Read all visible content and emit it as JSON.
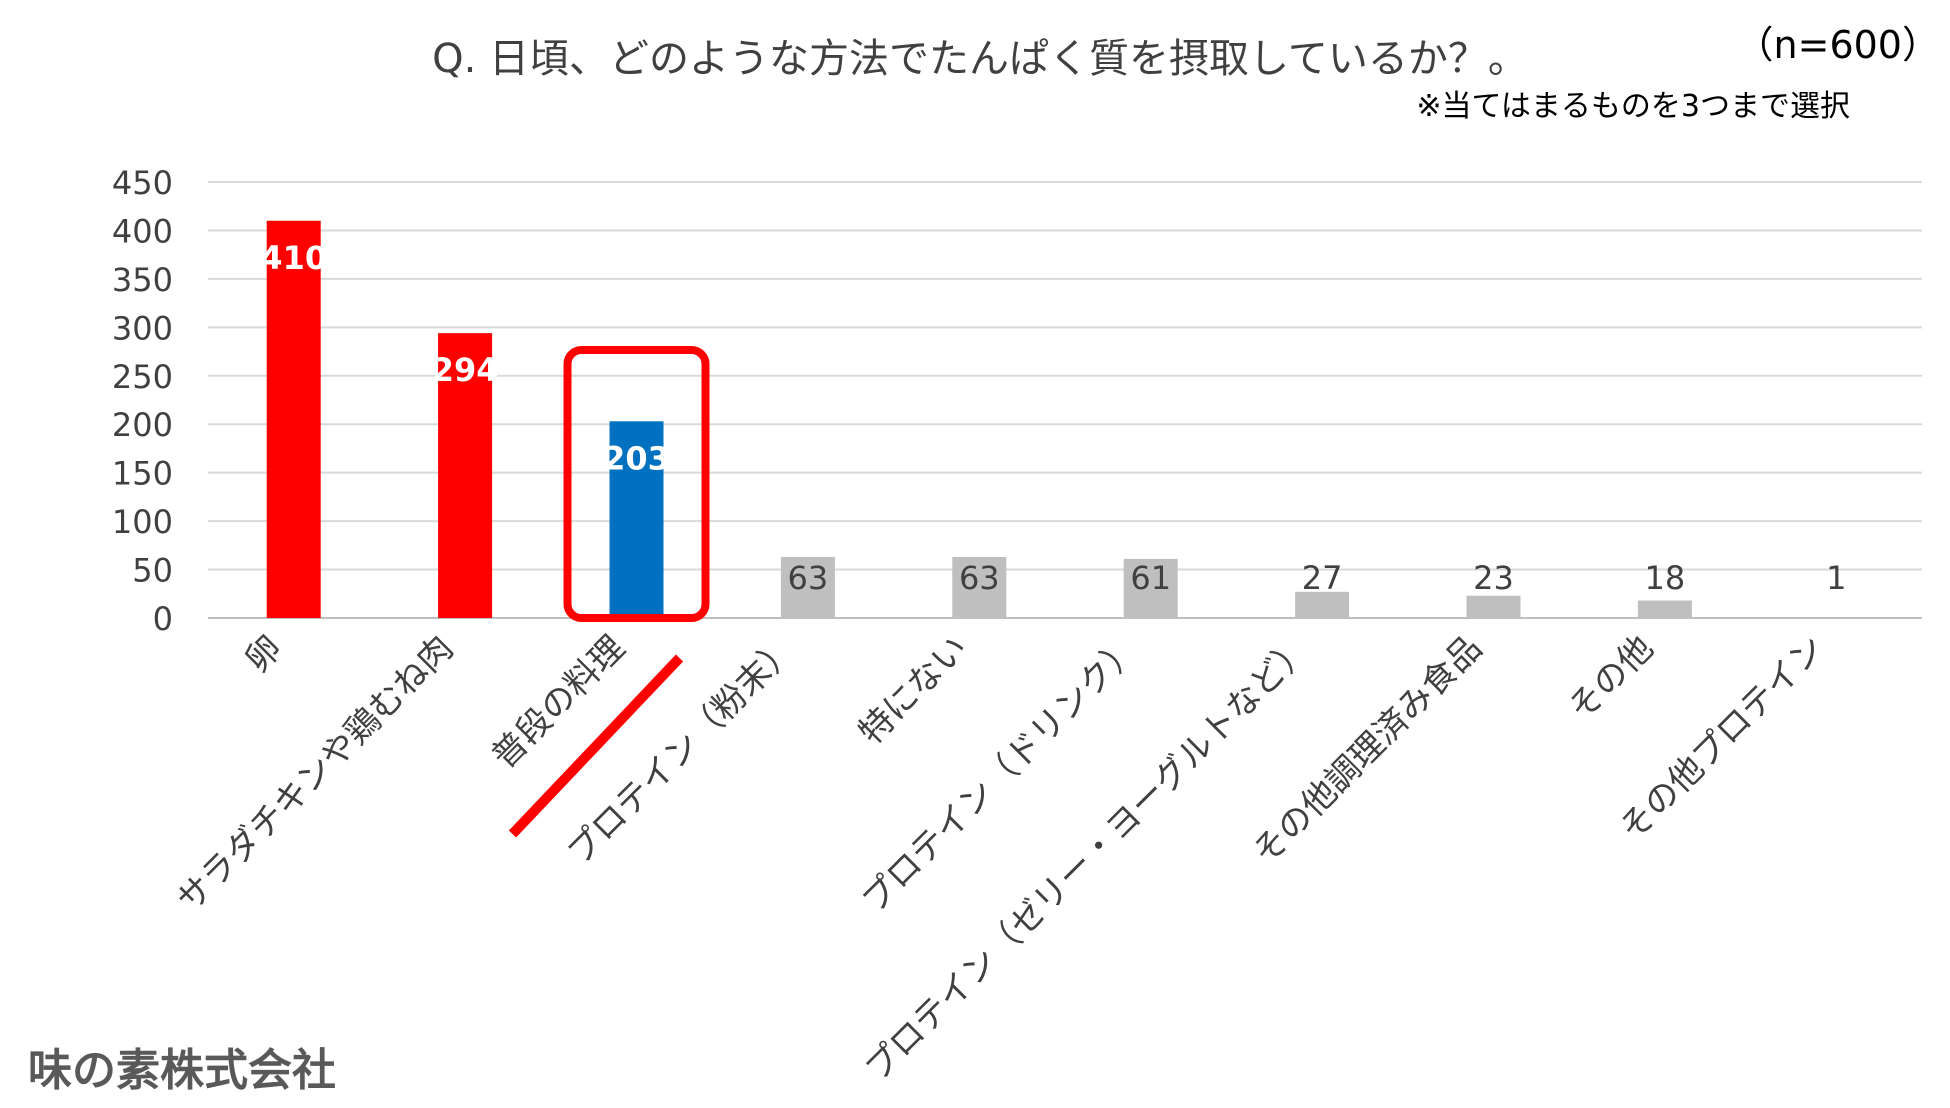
{
  "chart_data": {
    "type": "bar",
    "title": "Q. 日頃、どのような方法でたんぱく質を摂取しているか？。",
    "sample_note": "（n=600）",
    "subtitle": "※当てはまるものを3つまで選択",
    "categories": [
      "卵",
      "サラダチキンや鶏むね肉",
      "普段の料理",
      "プロテイン（粉末）",
      "特にない",
      "プロテイン（ドリンク）",
      "プロテイン（ゼリー・ヨーグルトなど）",
      "その他調理済み食品",
      "その他",
      "その他プロテイン"
    ],
    "values": [
      410,
      294,
      203,
      63,
      63,
      61,
      27,
      23,
      18,
      1
    ],
    "bar_colors": [
      "#ff0000",
      "#ff0000",
      "#0070c0",
      "#bfbfbf",
      "#bfbfbf",
      "#bfbfbf",
      "#bfbfbf",
      "#bfbfbf",
      "#bfbfbf",
      "#bfbfbf"
    ],
    "highlight_index": 2,
    "highlight_color": "#ff0000",
    "ylim": [
      0,
      450
    ],
    "y_ticks": [
      0,
      50,
      100,
      150,
      200,
      250,
      300,
      350,
      400,
      450
    ],
    "grid": true,
    "xlabel": "",
    "ylabel": ""
  },
  "footer": {
    "company": "味の素株式会社"
  }
}
